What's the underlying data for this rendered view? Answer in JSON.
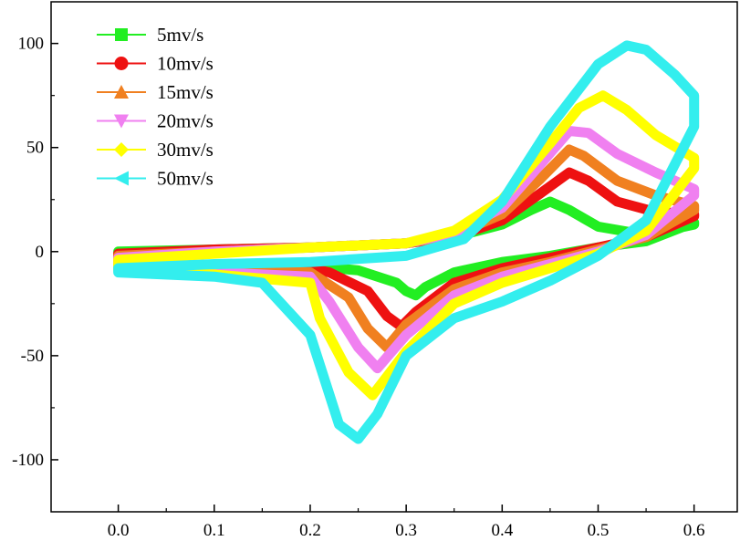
{
  "chart_data": {
    "type": "line",
    "title": "",
    "xlabel": "",
    "ylabel": "",
    "xlim": [
      -0.07,
      0.645
    ],
    "ylim": [
      -125,
      120
    ],
    "xticks": [
      0.0,
      0.1,
      0.2,
      0.3,
      0.4,
      0.5,
      0.6
    ],
    "xtick_labels": [
      "0.0",
      "0.1",
      "0.2",
      "0.3",
      "0.4",
      "0.5",
      "0.6"
    ],
    "yticks": [
      -100,
      -50,
      0,
      50,
      100
    ],
    "ytick_labels": [
      "-100",
      "-50",
      "0",
      "50",
      "100"
    ],
    "grid": false,
    "legend_position": "top-left",
    "series": [
      {
        "name": "5mv/s",
        "color": "#22ee22",
        "marker": "square",
        "x": [
          0.0,
          0.1,
          0.2,
          0.3,
          0.35,
          0.4,
          0.43,
          0.45,
          0.47,
          0.5,
          0.55,
          0.6,
          0.6,
          0.55,
          0.5,
          0.45,
          0.4,
          0.35,
          0.32,
          0.31,
          0.3,
          0.29,
          0.25,
          0.2,
          0.1,
          0.0,
          0.0
        ],
        "y": [
          0,
          1,
          2,
          4,
          7,
          13,
          20,
          24,
          20,
          12,
          8,
          13,
          14,
          5,
          2,
          -2,
          -5,
          -10,
          -17,
          -21,
          -19,
          -15,
          -9,
          -7,
          -7,
          -5,
          0
        ]
      },
      {
        "name": "10mv/s",
        "color": "#ee1111",
        "marker": "circle",
        "x": [
          0.0,
          0.1,
          0.2,
          0.3,
          0.35,
          0.4,
          0.44,
          0.47,
          0.49,
          0.52,
          0.56,
          0.6,
          0.6,
          0.55,
          0.5,
          0.45,
          0.4,
          0.35,
          0.31,
          0.295,
          0.28,
          0.26,
          0.22,
          0.2,
          0.1,
          0.0,
          0.0
        ],
        "y": [
          -1,
          1,
          2,
          4,
          7,
          15,
          28,
          38,
          34,
          24,
          19,
          18,
          17,
          7,
          2,
          -3,
          -8,
          -15,
          -29,
          -36,
          -31,
          -19,
          -10,
          -8,
          -8,
          -6,
          -1
        ]
      },
      {
        "name": "15mv/s",
        "color": "#f08020",
        "marker": "triangle-up",
        "x": [
          0.0,
          0.1,
          0.2,
          0.3,
          0.35,
          0.4,
          0.44,
          0.47,
          0.485,
          0.52,
          0.56,
          0.6,
          0.6,
          0.55,
          0.5,
          0.45,
          0.4,
          0.35,
          0.3,
          0.28,
          0.26,
          0.24,
          0.2,
          0.1,
          0.0,
          0.0
        ],
        "y": [
          -2,
          0,
          2,
          4,
          8,
          18,
          35,
          49,
          46,
          34,
          27,
          22,
          20,
          7,
          1,
          -5,
          -10,
          -18,
          -35,
          -46,
          -37,
          -22,
          -10,
          -9,
          -7,
          -2
        ]
      },
      {
        "name": "20mv/s",
        "color": "#f080f0",
        "marker": "triangle-down",
        "x": [
          0.0,
          0.1,
          0.2,
          0.3,
          0.35,
          0.4,
          0.44,
          0.47,
          0.49,
          0.52,
          0.56,
          0.6,
          0.6,
          0.55,
          0.5,
          0.45,
          0.4,
          0.35,
          0.3,
          0.27,
          0.25,
          0.22,
          0.2,
          0.1,
          0.0,
          0.0
        ],
        "y": [
          -3,
          0,
          2,
          4,
          9,
          21,
          42,
          58,
          57,
          47,
          38,
          30,
          27,
          8,
          0,
          -6,
          -12,
          -21,
          -40,
          -56,
          -46,
          -24,
          -12,
          -10,
          -8,
          -3
        ]
      },
      {
        "name": "30mv/s",
        "color": "#ffff00",
        "marker": "diamond",
        "x": [
          0.0,
          0.1,
          0.2,
          0.3,
          0.35,
          0.4,
          0.45,
          0.48,
          0.505,
          0.53,
          0.56,
          0.6,
          0.6,
          0.55,
          0.5,
          0.45,
          0.4,
          0.35,
          0.3,
          0.265,
          0.24,
          0.21,
          0.2,
          0.1,
          0.0,
          0.0
        ],
        "y": [
          -4,
          -1,
          2,
          4,
          10,
          25,
          52,
          69,
          75,
          68,
          56,
          45,
          40,
          10,
          -1,
          -8,
          -15,
          -25,
          -48,
          -69,
          -58,
          -32,
          -15,
          -11,
          -9,
          -4
        ]
      },
      {
        "name": "50mv/s",
        "color": "#33eeee",
        "marker": "triangle-left",
        "x": [
          0.0,
          0.1,
          0.2,
          0.3,
          0.36,
          0.4,
          0.45,
          0.5,
          0.53,
          0.55,
          0.58,
          0.6,
          0.6,
          0.55,
          0.5,
          0.45,
          0.4,
          0.35,
          0.3,
          0.27,
          0.25,
          0.23,
          0.2,
          0.15,
          0.1,
          0.0,
          0.0
        ],
        "y": [
          -8,
          -6,
          -5,
          -2,
          6,
          24,
          60,
          90,
          99,
          97,
          85,
          75,
          60,
          15,
          -2,
          -14,
          -24,
          -32,
          -50,
          -78,
          -90,
          -83,
          -40,
          -15,
          -12,
          -10,
          -8
        ]
      }
    ]
  }
}
